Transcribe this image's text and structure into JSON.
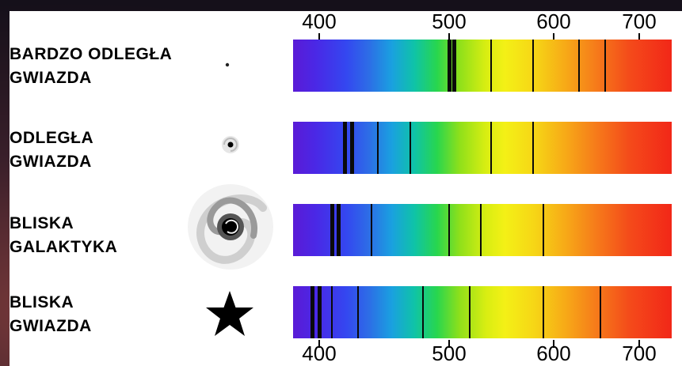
{
  "scale": {
    "top_ticks": [
      "400",
      "500",
      "600",
      "700"
    ],
    "bottom_ticks": [
      "400",
      "500",
      "600",
      "700"
    ]
  },
  "rows": [
    {
      "label_line1": "BARDZO ODLEGŁA",
      "label_line2": "GWIAZDA",
      "icon": "distant-dot-icon",
      "lines_nm": [
        500,
        505,
        540,
        580,
        630,
        660
      ]
    },
    {
      "label_line1": "ODLEGŁA",
      "label_line2": "GWIAZDA",
      "icon": "small-spiral-icon",
      "lines_nm": [
        420,
        425,
        445,
        470,
        540,
        580
      ]
    },
    {
      "label_line1": "BLISKA",
      "label_line2": "GALAKTYKA",
      "icon": "spiral-galaxy-icon",
      "lines_nm": [
        410,
        415,
        440,
        500,
        530,
        590
      ]
    },
    {
      "label_line1": "BLISKA",
      "label_line2": "GWIAZDA",
      "icon": "star-icon",
      "lines_nm": [
        395,
        400,
        410,
        430,
        480,
        520,
        590,
        655
      ]
    }
  ],
  "colors": {
    "absorption_line": "#0a0a0a",
    "background": "#15101a"
  }
}
